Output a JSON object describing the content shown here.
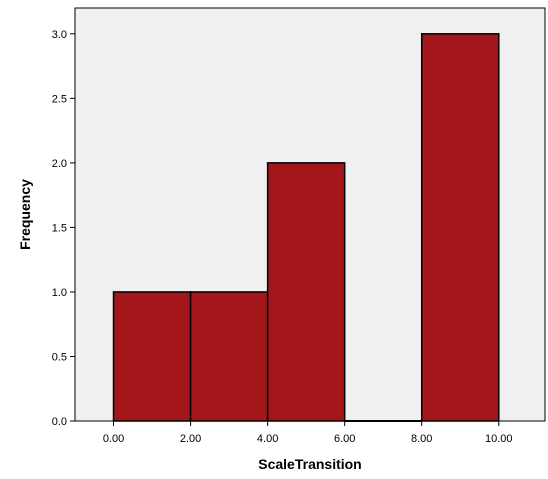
{
  "chart_data": {
    "type": "bar",
    "subtype": "histogram",
    "bins": [
      {
        "start": 0,
        "end": 2,
        "frequency": 1
      },
      {
        "start": 2,
        "end": 4,
        "frequency": 1
      },
      {
        "start": 4,
        "end": 6,
        "frequency": 2
      },
      {
        "start": 6,
        "end": 8,
        "frequency": 0
      },
      {
        "start": 8,
        "end": 10,
        "frequency": 3
      }
    ],
    "xlabel": "ScaleTransition",
    "ylabel": "Frequency",
    "xlim": [
      -1,
      11.2
    ],
    "ylim": [
      0,
      3.2
    ],
    "x_ticks": [
      0,
      2,
      4,
      6,
      8,
      10
    ],
    "x_tick_labels": [
      "0.00",
      "2.00",
      "4.00",
      "6.00",
      "8.00",
      "10.00"
    ],
    "y_ticks": [
      0,
      0.5,
      1,
      1.5,
      2,
      2.5,
      3
    ],
    "y_tick_labels": [
      "0.0",
      "0.5",
      "1.0",
      "1.5",
      "2.0",
      "2.5",
      "3.0"
    ],
    "grid": false,
    "legend": "none",
    "colors": {
      "bar_fill": "#a3171b",
      "bar_stroke": "#000000",
      "plot_background": "#f0f0f0",
      "axis": "#000000"
    }
  }
}
